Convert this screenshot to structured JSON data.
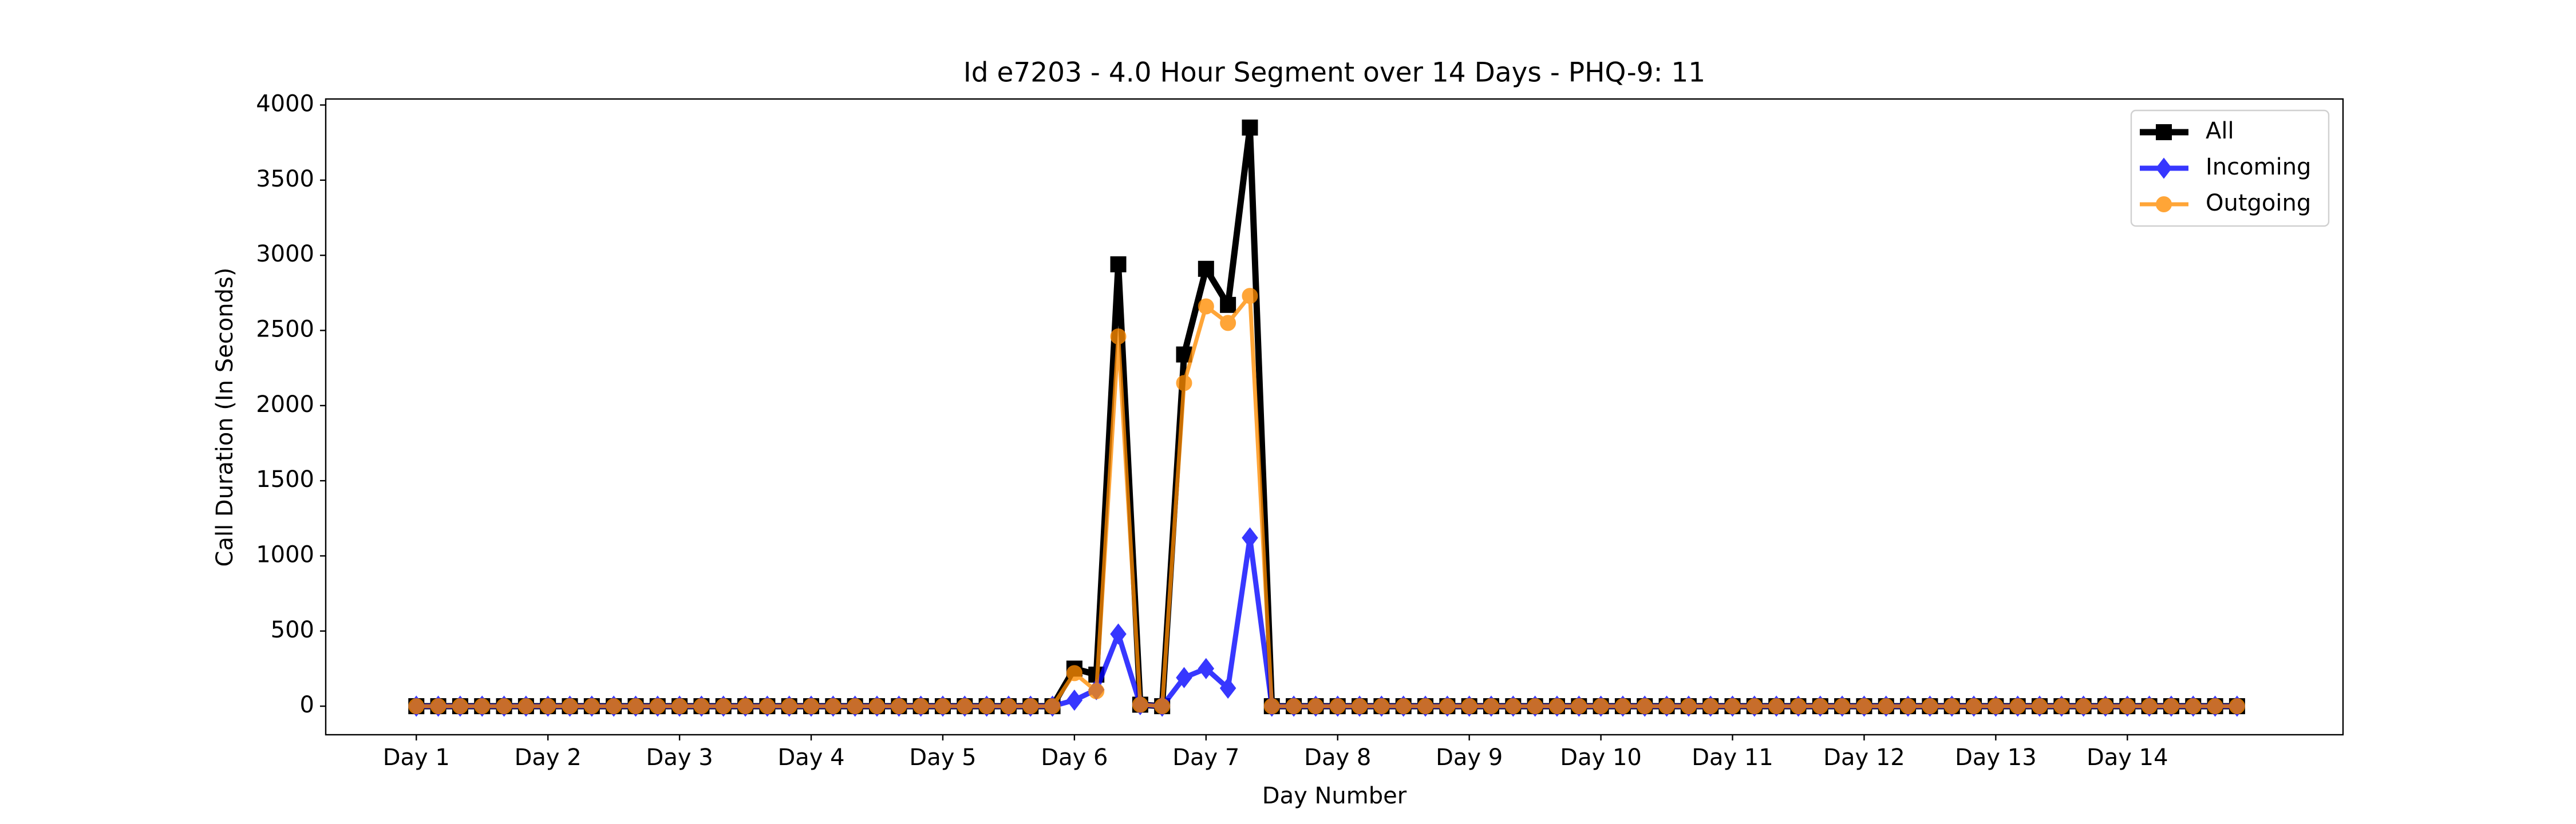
{
  "chart_data": {
    "type": "line",
    "title": "Id e7203 - 4.0 Hour Segment over 14 Days - PHQ-9: 11",
    "x_label": "Day Number",
    "y_label": "Call Duration (In Seconds)",
    "categories": [
      "Day 1",
      null,
      null,
      null,
      null,
      null,
      "Day 2",
      null,
      null,
      null,
      null,
      null,
      "Day 3",
      null,
      null,
      null,
      null,
      null,
      "Day 4",
      null,
      null,
      null,
      null,
      null,
      "Day 5",
      null,
      null,
      null,
      null,
      null,
      "Day 6",
      null,
      null,
      null,
      null,
      null,
      "Day 7",
      null,
      null,
      null,
      null,
      null,
      "Day 8",
      null,
      null,
      null,
      null,
      null,
      "Day 9",
      null,
      null,
      null,
      null,
      null,
      "Day 10",
      null,
      null,
      null,
      null,
      null,
      "Day 11",
      null,
      null,
      null,
      null,
      null,
      "Day 12",
      null,
      null,
      null,
      null,
      null,
      "Day 13",
      null,
      null,
      null,
      null,
      null,
      "Day 14",
      null,
      null,
      null,
      null,
      null
    ],
    "series": [
      {
        "name": "All",
        "color": "#000000",
        "marker": "square",
        "values": [
          0,
          0,
          0,
          0,
          0,
          0,
          0,
          0,
          0,
          0,
          0,
          0,
          0,
          0,
          0,
          0,
          0,
          0,
          0,
          0,
          0,
          0,
          0,
          0,
          0,
          0,
          0,
          0,
          0,
          0,
          250,
          210,
          2940,
          10,
          0,
          2340,
          2910,
          2670,
          3850,
          0,
          0,
          0,
          0,
          0,
          0,
          0,
          0,
          0,
          0,
          0,
          0,
          0,
          0,
          0,
          0,
          0,
          0,
          0,
          0,
          0,
          0,
          0,
          0,
          0,
          0,
          0,
          0,
          0,
          0,
          0,
          0,
          0,
          0,
          0,
          0,
          0,
          0,
          0,
          0,
          0,
          0,
          0,
          0,
          0
        ]
      },
      {
        "name": "Incoming",
        "color": "#0000ff",
        "marker": "diamond",
        "values": [
          0,
          0,
          0,
          0,
          0,
          0,
          0,
          0,
          0,
          0,
          0,
          0,
          0,
          0,
          0,
          0,
          0,
          0,
          0,
          0,
          0,
          0,
          0,
          0,
          0,
          0,
          0,
          0,
          0,
          0,
          40,
          110,
          480,
          10,
          0,
          190,
          250,
          120,
          1120,
          0,
          0,
          0,
          0,
          0,
          0,
          0,
          0,
          0,
          0,
          0,
          0,
          0,
          0,
          0,
          0,
          0,
          0,
          0,
          0,
          0,
          0,
          0,
          0,
          0,
          0,
          0,
          0,
          0,
          0,
          0,
          0,
          0,
          0,
          0,
          0,
          0,
          0,
          0,
          0,
          0,
          0,
          0,
          0,
          0
        ]
      },
      {
        "name": "Outgoing",
        "color": "#ff8c00",
        "marker": "circle",
        "values": [
          0,
          0,
          0,
          0,
          0,
          0,
          0,
          0,
          0,
          0,
          0,
          0,
          0,
          0,
          0,
          0,
          0,
          0,
          0,
          0,
          0,
          0,
          0,
          0,
          0,
          0,
          0,
          0,
          0,
          0,
          220,
          100,
          2460,
          10,
          0,
          2150,
          2660,
          2550,
          2730,
          0,
          0,
          0,
          0,
          0,
          0,
          0,
          0,
          0,
          0,
          0,
          0,
          0,
          0,
          0,
          0,
          0,
          0,
          0,
          0,
          0,
          0,
          0,
          0,
          0,
          0,
          0,
          0,
          0,
          0,
          0,
          0,
          0,
          0,
          0,
          0,
          0,
          0,
          0,
          0,
          0,
          0,
          0,
          0,
          0
        ]
      }
    ],
    "ylim": [
      -190,
      4040
    ],
    "yticks": [
      0,
      500,
      1000,
      1500,
      2000,
      2500,
      3000,
      3500,
      4000
    ],
    "legend": "upper right",
    "grid": false
  }
}
